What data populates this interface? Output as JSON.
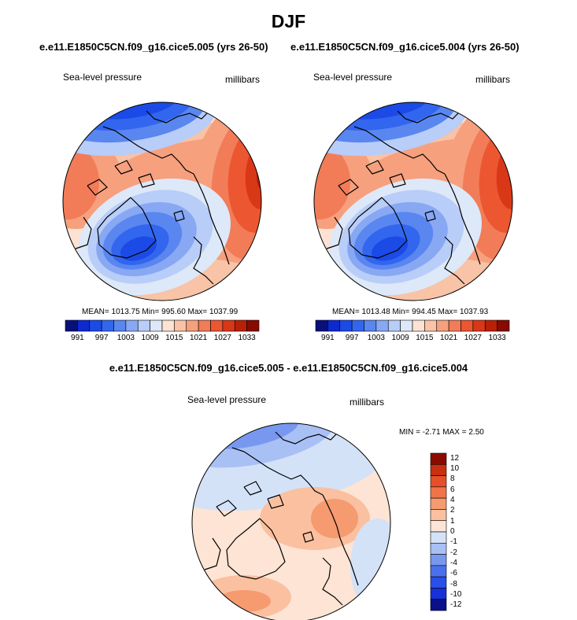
{
  "page": {
    "title": "DJF",
    "case_a": "e.e11.E1850C5CN.f09_g16.cice5.005 (yrs 26-50)",
    "case_b": "e.e11.E1850C5CN.f09_g16.cice5.004 (yrs 26-50)",
    "diff_title": "e.e11.E1850C5CN.f09_g16.cice5.005 - e.e11.E1850C5CN.f09_g16.cice5.004"
  },
  "colors": {
    "abs_scale": [
      "#08107a",
      "#0c2ad0",
      "#1b4ae6",
      "#3366ee",
      "#5a86f0",
      "#88a8f4",
      "#b8cdf8",
      "#dde8f8",
      "#fbe2d2",
      "#f8c3a6",
      "#f6a07e",
      "#f27c58",
      "#ec5630",
      "#d83818",
      "#b82008",
      "#880a00"
    ],
    "diff_scale": [
      "#0a108a",
      "#1830d8",
      "#2a50e8",
      "#4a70ec",
      "#7898f0",
      "#a8c0f4",
      "#d4e2f8",
      "#fde4d4",
      "#fac0a0",
      "#f69a70",
      "#f07448",
      "#e65028",
      "#c83010",
      "#8a0a00"
    ],
    "coast": "#000000",
    "outline": "#000000"
  },
  "chart_data": [
    {
      "type": "heatmap",
      "projection": "north-polar-stereographic",
      "title": "e.e11.E1850C5CN.f09_g16.cice5.005 (yrs 26-50)",
      "left_label": "Sea-level pressure",
      "right_label": "millibars",
      "stats": "MEAN= 1013.75  Min= 995.60  Max= 1037.99",
      "mean": 1013.75,
      "min": 995.6,
      "max": 1037.99,
      "units": "millibars",
      "colorbar_levels": [
        991,
        994,
        997,
        1000,
        1003,
        1006,
        1009,
        1012,
        1015,
        1018,
        1021,
        1024,
        1027,
        1030,
        1033
      ],
      "colorbar_labels": [
        "991",
        "997",
        "1003",
        "1009",
        "1015",
        "1021",
        "1027",
        "1033"
      ]
    },
    {
      "type": "heatmap",
      "projection": "north-polar-stereographic",
      "title": "e.e11.E1850C5CN.f09_g16.cice5.004 (yrs 26-50)",
      "left_label": "Sea-level pressure",
      "right_label": "millibars",
      "stats": "MEAN= 1013.48  Min= 994.45  Max= 1037.93",
      "mean": 1013.48,
      "min": 994.45,
      "max": 1037.93,
      "units": "millibars",
      "colorbar_levels": [
        991,
        994,
        997,
        1000,
        1003,
        1006,
        1009,
        1012,
        1015,
        1018,
        1021,
        1024,
        1027,
        1030,
        1033
      ],
      "colorbar_labels": [
        "991",
        "997",
        "1003",
        "1009",
        "1015",
        "1021",
        "1027",
        "1033"
      ]
    },
    {
      "type": "heatmap",
      "projection": "north-polar-stereographic",
      "title": "e.e11.E1850C5CN.f09_g16.cice5.005 - e.e11.E1850C5CN.f09_g16.cice5.004",
      "left_label": "Sea-level pressure",
      "right_label": "millibars",
      "stats": "MIN =  -2.71 MAX =   2.50",
      "min": -2.71,
      "max": 2.5,
      "units": "millibars",
      "colorbar_levels": [
        -12,
        -10,
        -8,
        -6,
        -4,
        -2,
        -1,
        0,
        1,
        2,
        4,
        6,
        8,
        10,
        12
      ],
      "colorbar_labels": [
        "12",
        "10",
        "8",
        "6",
        "4",
        "2",
        "1",
        "0",
        "-1",
        "-2",
        "-4",
        "-6",
        "-8",
        "-10",
        "-12"
      ]
    }
  ]
}
